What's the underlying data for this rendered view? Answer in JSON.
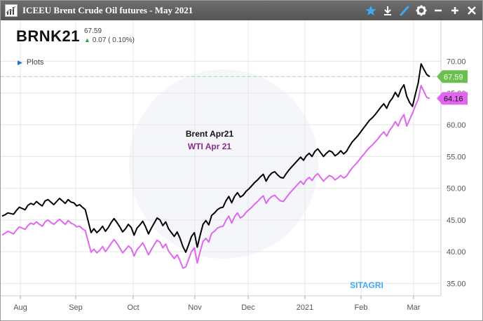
{
  "window": {
    "title": "ICEEU Brent Crude Oil futures - May 2021",
    "buttons": [
      "star-icon",
      "download-icon",
      "pen-icon",
      "gear-icon",
      "minimize-icon",
      "add-icon",
      "close-icon"
    ]
  },
  "header": {
    "symbol": "BRNK21",
    "last": "67.59",
    "change": "0.07 ( 0.10%)"
  },
  "plots_label": "Plots",
  "watermark": "SITAGRI",
  "colors": {
    "brent": "#000000",
    "wti": "#e066f0",
    "last_marker": "#6bbf4e",
    "wti_marker": "#e066f0",
    "grid": "#e6e6e6",
    "dashed_level": "#a8d8a0"
  },
  "chart_data": {
    "type": "line",
    "title": "ICEEU Brent Crude Oil futures - May 2021",
    "ylim": [
      32.5,
      72.5
    ],
    "y_ticks": [
      "35.00",
      "40.00",
      "45.00",
      "50.00",
      "55.00",
      "60.00",
      "65.00",
      "70.00"
    ],
    "x_ticks": [
      "Aug",
      "Sep",
      "Oct",
      "Nov",
      "Dec",
      "2021",
      "Feb",
      "Mar"
    ],
    "grid": true,
    "legend_position": "center",
    "series": [
      {
        "name": "Brent Apr21",
        "last_label": "67.59",
        "values": [
          45.6,
          45.8,
          46.1,
          46.0,
          45.9,
          46.5,
          47.0,
          46.8,
          46.6,
          47.3,
          47.6,
          47.4,
          47.9,
          47.5,
          47.2,
          48.0,
          48.2,
          47.8,
          47.4,
          47.9,
          48.4,
          48.0,
          47.6,
          48.2,
          47.8,
          47.7,
          47.2,
          47.4,
          47.0,
          46.6,
          44.8,
          43.0,
          43.6,
          43.0,
          43.4,
          44.0,
          43.2,
          43.8,
          44.6,
          45.2,
          44.6,
          43.9,
          43.1,
          43.6,
          44.3,
          43.8,
          42.6,
          43.7,
          44.2,
          44.8,
          43.9,
          42.8,
          43.7,
          44.5,
          45.3,
          45.0,
          44.1,
          44.7,
          43.6,
          43.0,
          42.4,
          43.1,
          42.1,
          40.8,
          39.9,
          41.1,
          42.4,
          43.0,
          40.7,
          42.6,
          44.3,
          44.9,
          44.2,
          45.7,
          46.1,
          46.6,
          46.9,
          47.0,
          48.0,
          48.7,
          47.7,
          48.7,
          49.3,
          48.6,
          48.9,
          49.5,
          49.9,
          50.4,
          50.9,
          51.3,
          51.8,
          52.2,
          51.1,
          51.9,
          52.4,
          52.6,
          52.1,
          51.7,
          51.6,
          52.3,
          52.9,
          53.4,
          53.9,
          54.4,
          54.9,
          54.4,
          55.1,
          55.5,
          55.0,
          55.8,
          56.2,
          55.6,
          55.0,
          55.5,
          55.9,
          55.7,
          55.1,
          55.4,
          55.9,
          55.4,
          55.8,
          56.6,
          57.3,
          57.8,
          58.3,
          58.9,
          59.5,
          60.1,
          60.7,
          61.1,
          61.6,
          62.2,
          62.8,
          63.3,
          62.6,
          63.6,
          64.2,
          65.1,
          64.4,
          65.6,
          66.3,
          64.5,
          63.5,
          62.9,
          64.8,
          66.6,
          69.6,
          68.7,
          67.9,
          67.59
        ]
      },
      {
        "name": "WTI Apr 21",
        "last_label": "64.16",
        "values": [
          42.6,
          42.9,
          43.2,
          43.0,
          42.8,
          43.4,
          43.9,
          43.7,
          43.5,
          44.1,
          44.5,
          44.3,
          44.7,
          44.3,
          44.0,
          44.7,
          45.0,
          44.6,
          44.3,
          44.7,
          45.1,
          44.7,
          44.3,
          44.9,
          44.5,
          44.3,
          43.9,
          44.0,
          43.6,
          43.3,
          41.6,
          39.9,
          40.4,
          39.8,
          40.2,
          40.8,
          40.0,
          40.6,
          41.3,
          41.9,
          41.3,
          40.6,
          39.8,
          40.3,
          40.9,
          40.5,
          39.3,
          40.3,
          40.8,
          41.4,
          40.5,
          39.5,
          40.3,
          41.1,
          41.8,
          41.5,
          40.6,
          41.2,
          40.1,
          39.5,
          38.9,
          39.5,
          38.6,
          37.4,
          37.6,
          38.8,
          40.0,
          40.6,
          38.2,
          40.0,
          41.6,
          42.1,
          41.5,
          42.9,
          43.2,
          43.7,
          43.9,
          44.0,
          44.9,
          45.6,
          44.5,
          45.5,
          46.1,
          45.3,
          45.6,
          46.2,
          46.6,
          47.0,
          47.5,
          47.9,
          48.4,
          48.8,
          47.6,
          48.3,
          48.7,
          48.9,
          48.4,
          48.0,
          47.9,
          48.5,
          49.1,
          49.6,
          50.1,
          50.6,
          51.1,
          50.6,
          51.3,
          51.7,
          51.2,
          51.9,
          52.3,
          51.7,
          51.1,
          51.6,
          52.0,
          51.8,
          51.3,
          51.6,
          52.0,
          51.6,
          51.9,
          52.6,
          53.2,
          53.7,
          54.2,
          54.8,
          55.3,
          55.9,
          56.4,
          56.8,
          57.3,
          57.8,
          58.4,
          58.9,
          58.2,
          59.1,
          59.7,
          60.5,
          59.8,
          60.9,
          61.6,
          59.8,
          60.8,
          61.8,
          63.0,
          64.0,
          66.2,
          65.2,
          64.3,
          64.16
        ]
      }
    ]
  }
}
